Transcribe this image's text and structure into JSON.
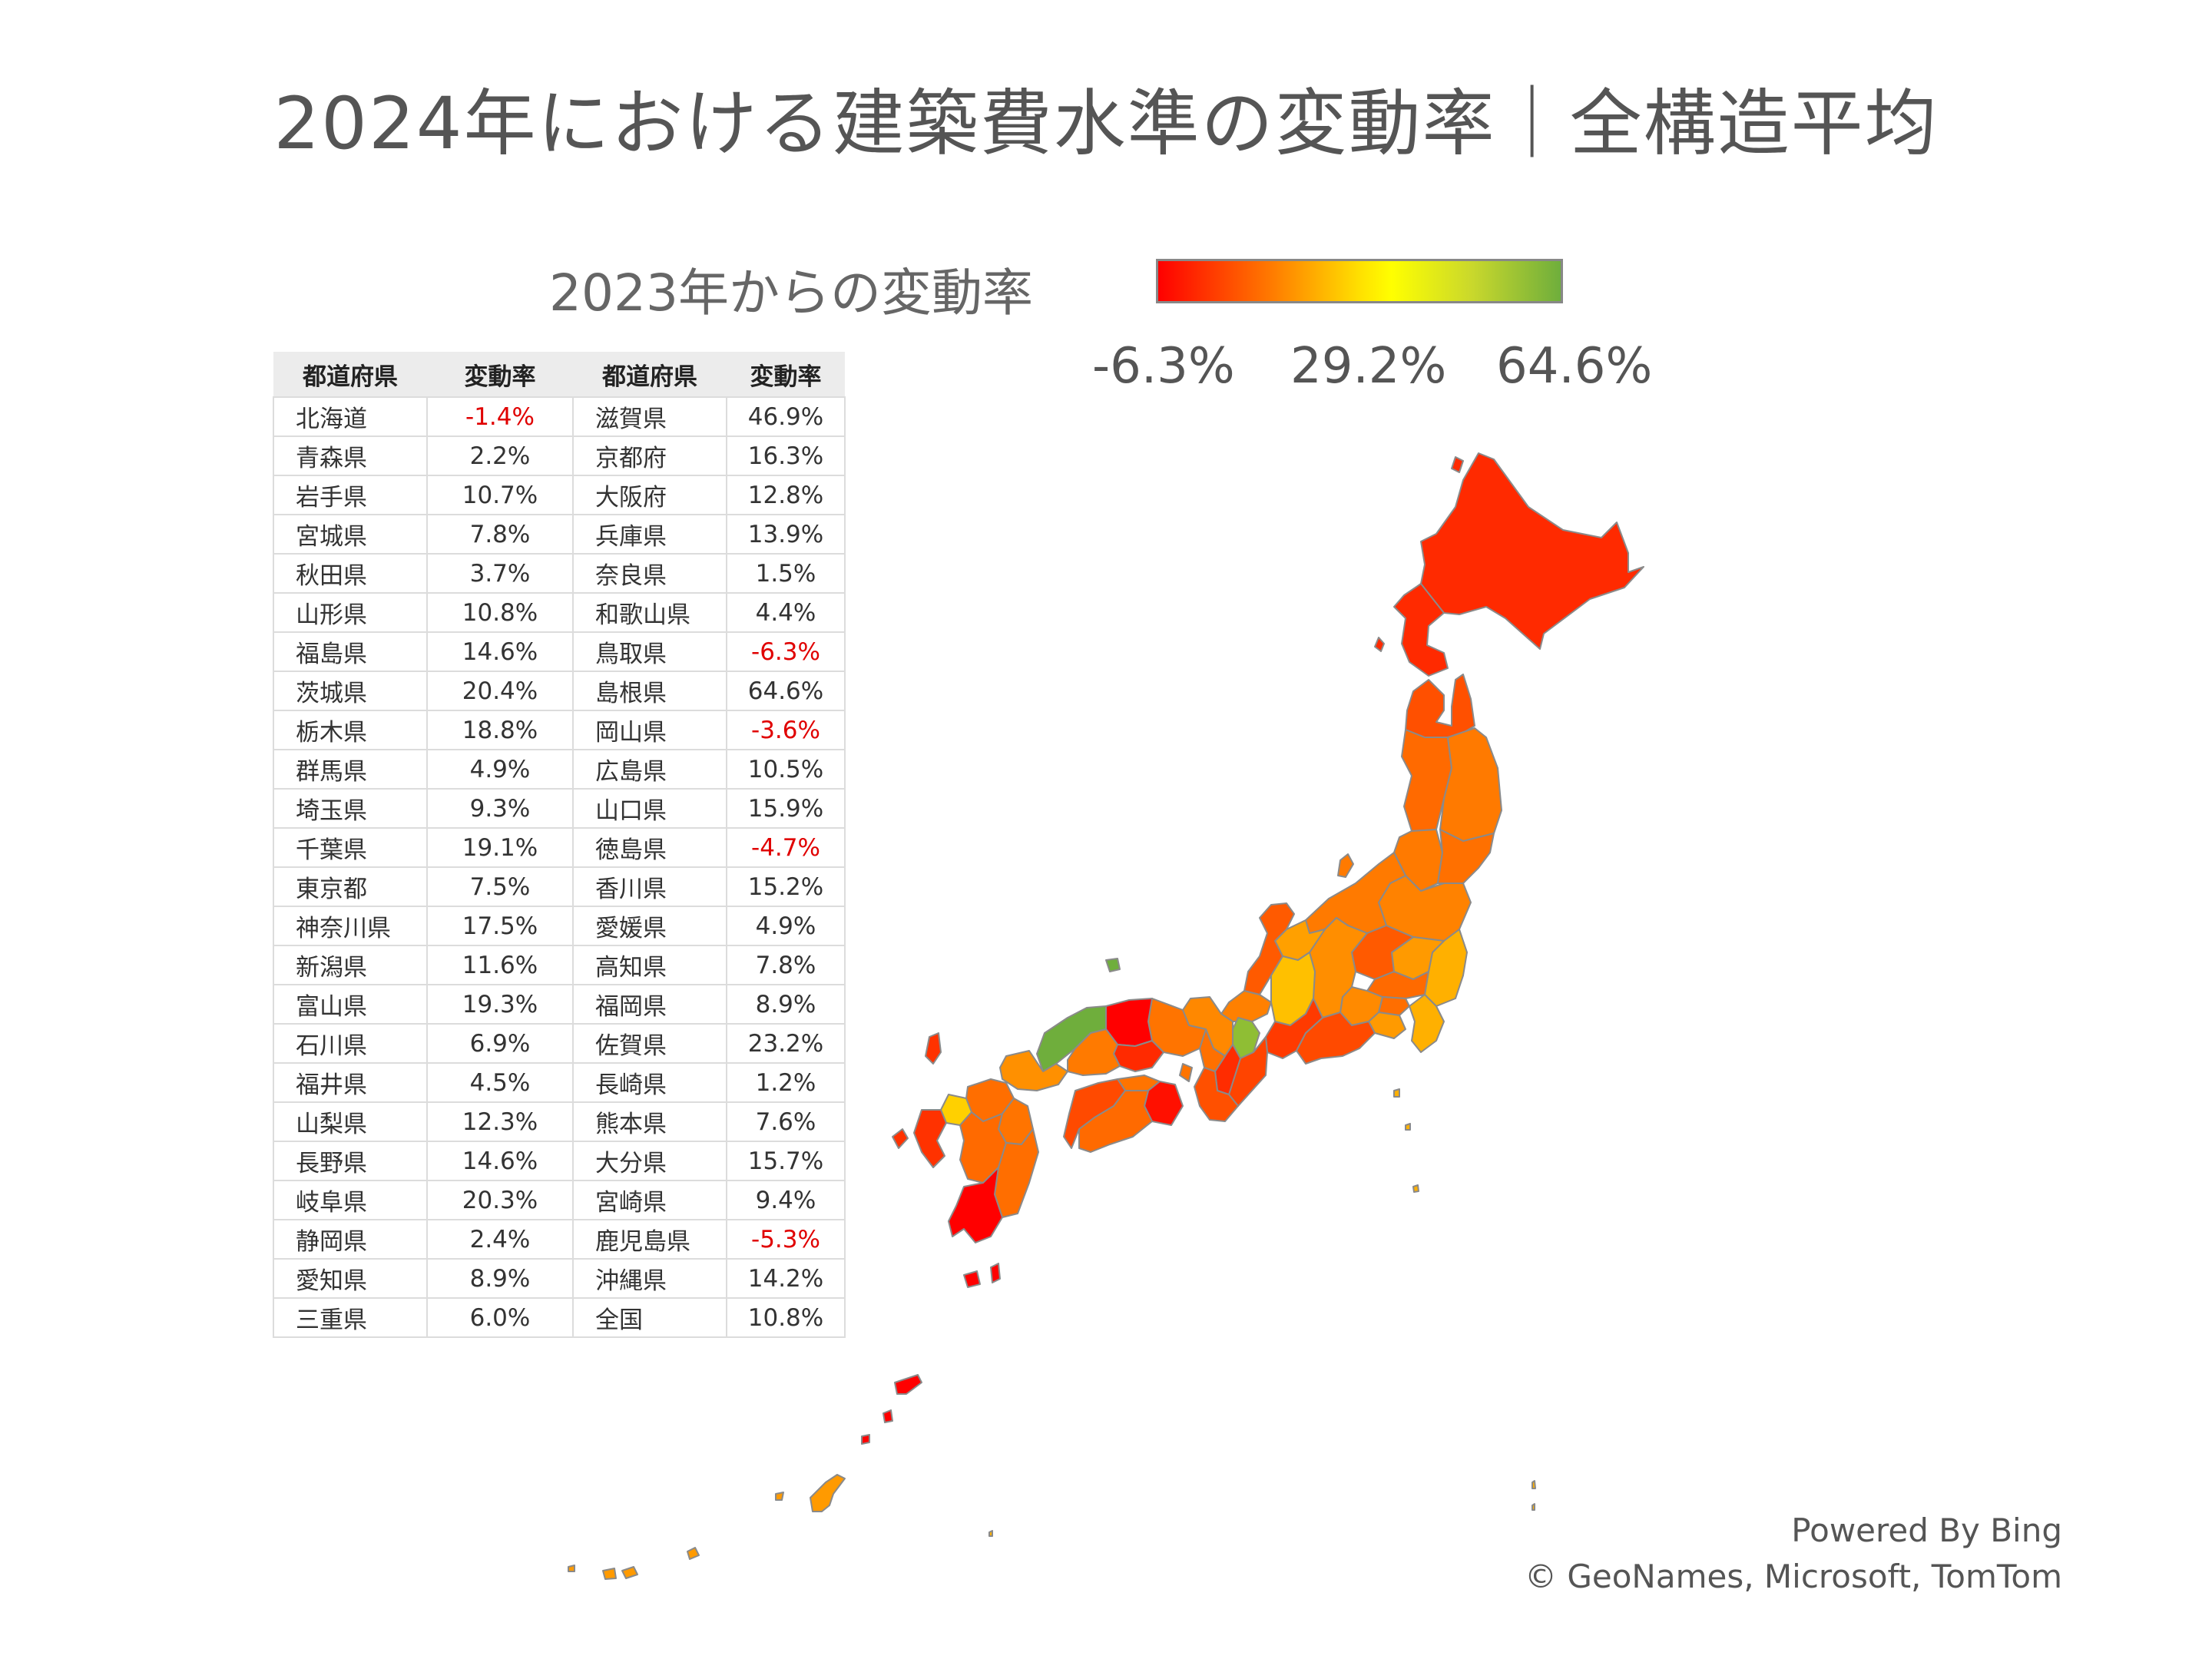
{
  "title": "2024年における建築費水準の変動率｜全構造平均",
  "legend": {
    "label": "2023年からの変動率",
    "min": "-6.3%",
    "mid": "29.2%",
    "max": "64.6%",
    "colors": [
      "#ff0000",
      "#ffff00",
      "#6fae3c"
    ]
  },
  "table": {
    "headers": [
      "都道府県",
      "変動率",
      "都道府県",
      "変動率"
    ],
    "rows": [
      {
        "p1": "北海道",
        "v1": "-1.4%",
        "p2": "滋賀県",
        "v2": "46.9%"
      },
      {
        "p1": "青森県",
        "v1": "2.2%",
        "p2": "京都府",
        "v2": "16.3%"
      },
      {
        "p1": "岩手県",
        "v1": "10.7%",
        "p2": "大阪府",
        "v2": "12.8%"
      },
      {
        "p1": "宮城県",
        "v1": "7.8%",
        "p2": "兵庫県",
        "v2": "13.9%"
      },
      {
        "p1": "秋田県",
        "v1": "3.7%",
        "p2": "奈良県",
        "v2": "1.5%"
      },
      {
        "p1": "山形県",
        "v1": "10.8%",
        "p2": "和歌山県",
        "v2": "4.4%"
      },
      {
        "p1": "福島県",
        "v1": "14.6%",
        "p2": "鳥取県",
        "v2": "-6.3%"
      },
      {
        "p1": "茨城県",
        "v1": "20.4%",
        "p2": "島根県",
        "v2": "64.6%"
      },
      {
        "p1": "栃木県",
        "v1": "18.8%",
        "p2": "岡山県",
        "v2": "-3.6%"
      },
      {
        "p1": "群馬県",
        "v1": "4.9%",
        "p2": "広島県",
        "v2": "10.5%"
      },
      {
        "p1": "埼玉県",
        "v1": "9.3%",
        "p2": "山口県",
        "v2": "15.9%"
      },
      {
        "p1": "千葉県",
        "v1": "19.1%",
        "p2": "徳島県",
        "v2": "-4.7%"
      },
      {
        "p1": "東京都",
        "v1": "7.5%",
        "p2": "香川県",
        "v2": "15.2%"
      },
      {
        "p1": "神奈川県",
        "v1": "17.5%",
        "p2": "愛媛県",
        "v2": "4.9%"
      },
      {
        "p1": "新潟県",
        "v1": "11.6%",
        "p2": "高知県",
        "v2": "7.8%"
      },
      {
        "p1": "富山県",
        "v1": "19.3%",
        "p2": "福岡県",
        "v2": "8.9%"
      },
      {
        "p1": "石川県",
        "v1": "6.9%",
        "p2": "佐賀県",
        "v2": "23.2%"
      },
      {
        "p1": "福井県",
        "v1": "4.5%",
        "p2": "長崎県",
        "v2": "1.2%"
      },
      {
        "p1": "山梨県",
        "v1": "12.3%",
        "p2": "熊本県",
        "v2": "7.6%"
      },
      {
        "p1": "長野県",
        "v1": "14.6%",
        "p2": "大分県",
        "v2": "15.7%"
      },
      {
        "p1": "岐阜県",
        "v1": "20.3%",
        "p2": "宮崎県",
        "v2": "9.4%"
      },
      {
        "p1": "静岡県",
        "v1": "2.4%",
        "p2": "鹿児島県",
        "v2": "-5.3%"
      },
      {
        "p1": "愛知県",
        "v1": "8.9%",
        "p2": "沖縄県",
        "v2": "14.2%"
      },
      {
        "p1": "三重県",
        "v1": "6.0%",
        "p2": "全国",
        "v2": "10.8%"
      }
    ]
  },
  "credits": {
    "line1": "Powered By Bing",
    "line2": "© GeoNames, Microsoft, TomTom"
  }
}
